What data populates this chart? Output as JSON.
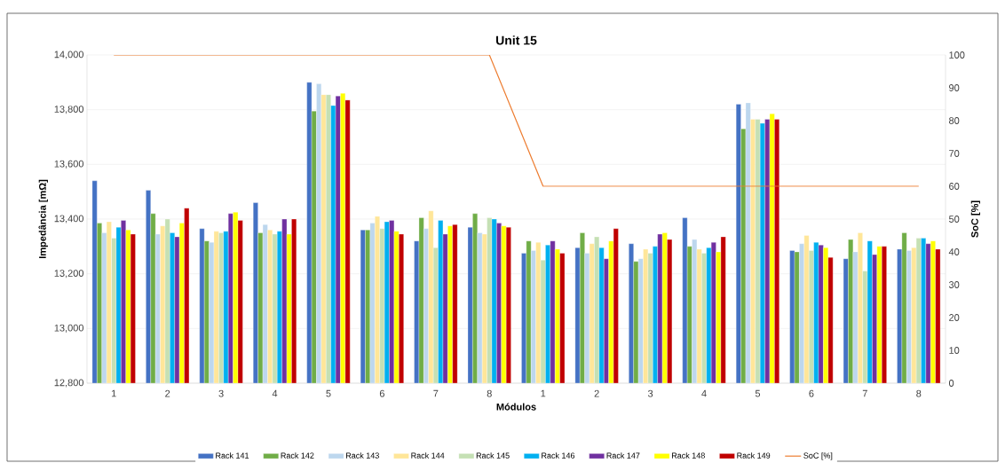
{
  "chart_data": {
    "type": "bar",
    "title": "Unit 15",
    "xlabel": "Módulos",
    "ylabel": "Impedância [mΩ]",
    "y2label": "SoC [%]",
    "categories": [
      "1",
      "2",
      "3",
      "4",
      "5",
      "6",
      "7",
      "8",
      "1",
      "2",
      "3",
      "4",
      "5",
      "6",
      "7",
      "8"
    ],
    "series": [
      {
        "name": "Rack 141",
        "color": "#4472c4",
        "values": [
          13540,
          13505,
          13365,
          13460,
          13900,
          13360,
          13320,
          13370,
          13275,
          13295,
          13310,
          13405,
          13820,
          13285,
          13255,
          13290
        ]
      },
      {
        "name": "Rack 142",
        "color": "#70ad47",
        "values": [
          13385,
          13420,
          13320,
          13350,
          13795,
          13360,
          13405,
          13420,
          13320,
          13350,
          13245,
          13300,
          13730,
          13280,
          13325,
          13350
        ]
      },
      {
        "name": "Rack 143",
        "color": "#bdd7ee",
        "values": [
          13350,
          13345,
          13315,
          13380,
          13895,
          13385,
          13365,
          13350,
          13285,
          13275,
          13255,
          13325,
          13825,
          13310,
          13280,
          13285
        ]
      },
      {
        "name": "Rack 144",
        "color": "#ffe699",
        "values": [
          13390,
          13375,
          13355,
          13360,
          13855,
          13410,
          13430,
          13345,
          13315,
          13310,
          13290,
          13290,
          13765,
          13340,
          13350,
          13295
        ]
      },
      {
        "name": "Rack 145",
        "color": "#c5e0b4",
        "values": [
          13330,
          13400,
          13350,
          13345,
          13855,
          13365,
          13295,
          13405,
          13250,
          13335,
          13275,
          13275,
          13765,
          13285,
          13210,
          13330
        ]
      },
      {
        "name": "Rack 146",
        "color": "#00b0f0",
        "values": [
          13370,
          13350,
          13355,
          13355,
          13815,
          13390,
          13395,
          13400,
          13305,
          13295,
          13300,
          13295,
          13750,
          13315,
          13320,
          13330
        ]
      },
      {
        "name": "Rack 147",
        "color": "#7030a0",
        "values": [
          13395,
          13335,
          13420,
          13400,
          13850,
          13395,
          13345,
          13385,
          13320,
          13255,
          13345,
          13315,
          13765,
          13305,
          13270,
          13310
        ]
      },
      {
        "name": "Rack 148",
        "color": "#ffff00",
        "values": [
          13360,
          13385,
          13425,
          13345,
          13860,
          13355,
          13375,
          13375,
          13290,
          13320,
          13350,
          13280,
          13785,
          13295,
          13300,
          13320
        ]
      },
      {
        "name": "Rack 149",
        "color": "#c00000",
        "values": [
          13345,
          13440,
          13395,
          13400,
          13835,
          13345,
          13380,
          13370,
          13275,
          13365,
          13325,
          13335,
          13765,
          13260,
          13300,
          13290
        ]
      },
      {
        "name": "SoC [%]",
        "color": "#ed7d31",
        "type": "line",
        "axis": "y2",
        "values": [
          100,
          100,
          100,
          100,
          100,
          100,
          100,
          100,
          60,
          60,
          60,
          60,
          60,
          60,
          60,
          60
        ]
      }
    ],
    "ylim": [
      12800,
      14000
    ],
    "yticks": [
      {
        "value": 12800,
        "label": "12,800"
      },
      {
        "value": 13000,
        "label": "13,000"
      },
      {
        "value": 13200,
        "label": "13,200"
      },
      {
        "value": 13400,
        "label": "13,400"
      },
      {
        "value": 13600,
        "label": "13,600"
      },
      {
        "value": 13800,
        "label": "13,800"
      },
      {
        "value": 14000,
        "label": "14,000"
      }
    ],
    "y2lim": [
      0,
      100
    ],
    "y2ticks": [
      0,
      10,
      20,
      30,
      40,
      50,
      60,
      70,
      80,
      90,
      100
    ],
    "grid": "y",
    "legend": "bottom",
    "marker": "none"
  }
}
